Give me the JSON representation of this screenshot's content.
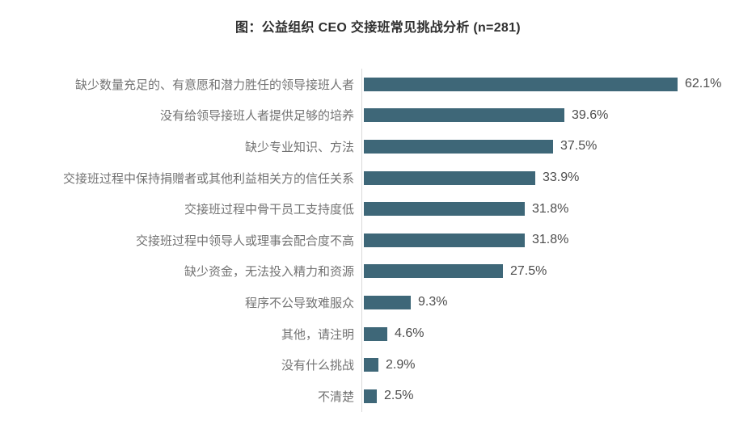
{
  "title": "图：公益组织 CEO 交接班常见挑战分析 (n=281)",
  "chart_data": {
    "type": "bar",
    "orientation": "horizontal",
    "title": "图：公益组织 CEO 交接班常见挑战分析 (n=281)",
    "n": 281,
    "categories": [
      "缺少数量充足的、有意愿和潜力胜任的领导接班人者",
      "没有给领导接班人者提供足够的培养",
      "缺少专业知识、方法",
      "交接班过程中保持捐赠者或其他利益相关方的信任关系",
      "交接班过程中骨干员工支持度低",
      "交接班过程中领导人或理事会配合度不高",
      "缺少资金，无法投入精力和资源",
      "程序不公导致难服众",
      "其他，请注明",
      "没有什么挑战",
      "不清楚"
    ],
    "values": [
      62.1,
      39.6,
      37.5,
      33.9,
      31.8,
      31.8,
      27.5,
      9.3,
      4.6,
      2.9,
      2.5
    ],
    "value_labels": [
      "62.1%",
      "39.6%",
      "37.5%",
      "33.9%",
      "31.8%",
      "31.8%",
      "27.5%",
      "9.3%",
      "4.6%",
      "2.9%",
      "2.5%"
    ],
    "xlabel": "",
    "ylabel": "",
    "xlim": [
      0,
      75
    ],
    "grid": false,
    "legend": false,
    "bar_color": "#3e6778",
    "axis_line_color": "#d9d9d9",
    "label_color": "#737373",
    "value_color": "#4d4d4d",
    "title_color": "#2f2f2f"
  }
}
